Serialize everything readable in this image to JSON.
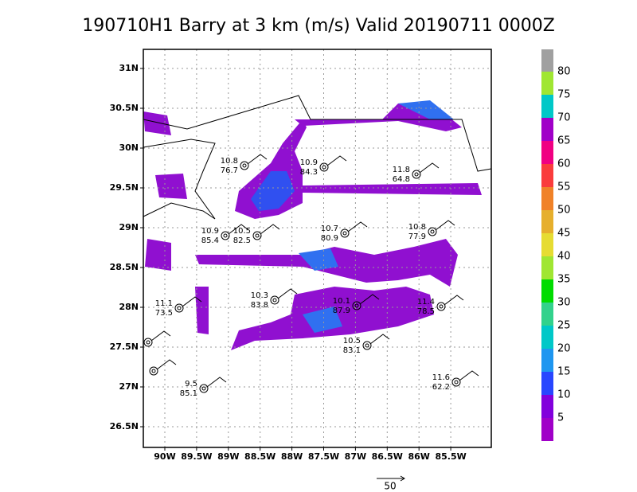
{
  "title": "190710H1 Barry at 3 km (m/s) Valid 20190711 0000Z",
  "lat_labels": [
    "31N",
    "30.5N",
    "30N",
    "29.5N",
    "29N",
    "28.5N",
    "28N",
    "27.5N",
    "27N",
    "26.5N"
  ],
  "lon_labels": [
    "90W",
    "89.5W",
    "89W",
    "88.5W",
    "88W",
    "87.5W",
    "87W",
    "86.5W",
    "86W",
    "85.5W"
  ],
  "colorbar": {
    "labels": [
      80,
      75,
      70,
      65,
      60,
      55,
      50,
      45,
      40,
      35,
      30,
      25,
      20,
      15,
      10,
      5
    ],
    "colors": [
      "#a0a0a0",
      "#a0e632",
      "#00c8c8",
      "#a000c8",
      "#f00082",
      "#fa3c3c",
      "#f08228",
      "#e6af2d",
      "#e6dc32",
      "#a0e632",
      "#00dc00",
      "#32d28c",
      "#00c8c8",
      "#1e96f0",
      "#2846ff",
      "#8200dc",
      "#a000c8"
    ]
  },
  "stations": [
    [
      "10.8",
      "76.7"
    ],
    [
      "10.9",
      "84.3"
    ],
    [
      "11.8",
      "64.8"
    ],
    [
      "10.9",
      "85.4"
    ],
    [
      "10.5",
      "82.5"
    ],
    [
      "10.7",
      "80.9"
    ],
    [
      "10.8",
      "77.9"
    ],
    [
      "10.3",
      "83.8"
    ],
    [
      "11.1",
      "73.5"
    ],
    [
      "10.1",
      "87.9"
    ],
    [
      "11.4",
      "78.5"
    ],
    [
      "10.5",
      "83.1"
    ],
    [
      "9.5",
      "85.1"
    ],
    [
      "11.6",
      "62.2"
    ]
  ],
  "scale_label": "50"
}
